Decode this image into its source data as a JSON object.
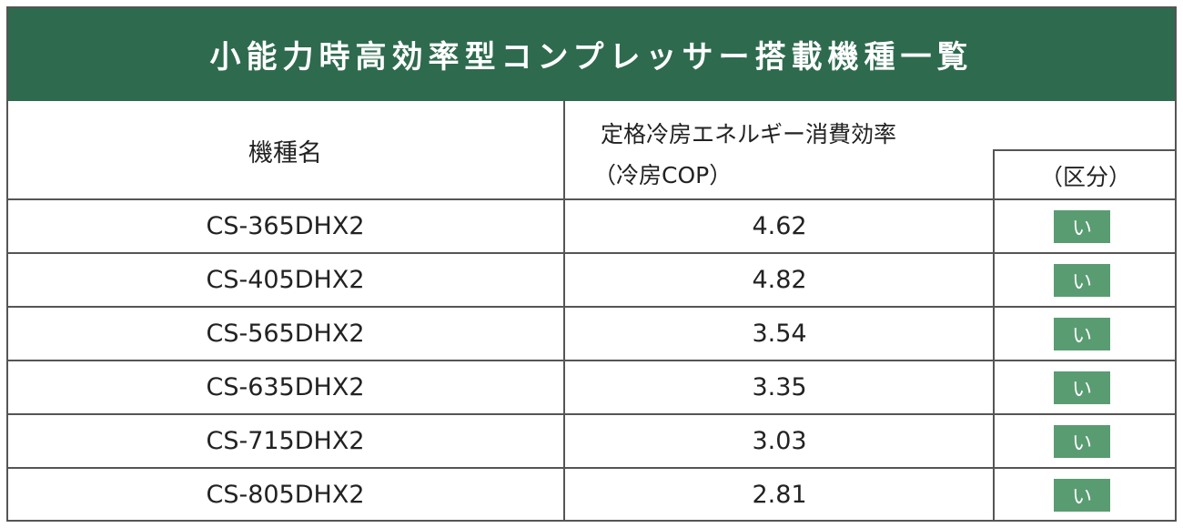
{
  "header": {
    "title": "小能力時高効率型コンプレッサー搭載機種一覧"
  },
  "table": {
    "headers": [
      "機種名",
      "定格冷房エネルギー消費効率",
      "（冷房COP）",
      "（区分）"
    ],
    "rows": [
      [
        "CS-365DHX2",
        4.62,
        "い"
      ],
      [
        "CS-405DHX2",
        4.82,
        "い"
      ],
      [
        "CS-565DHX2",
        3.54,
        "い"
      ],
      [
        "CS-635DHX2",
        3.35,
        "い"
      ],
      [
        "CS-715DHX2",
        3.03,
        "い"
      ],
      [
        "CS-805DHX2",
        2.81,
        "い"
      ]
    ]
  }
}
